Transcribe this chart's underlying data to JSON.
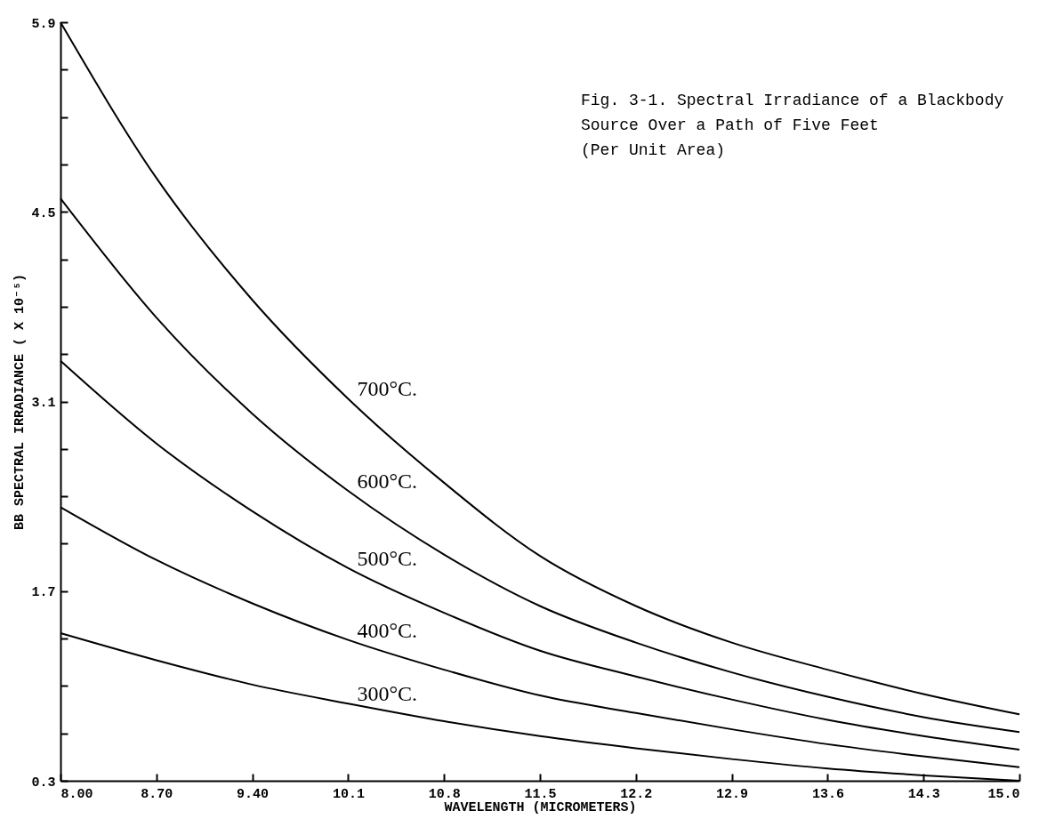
{
  "chart_data": {
    "type": "line",
    "title": "Fig. 3-1.  Spectral Irradiance of a Blackbody\nSource  Over a Path of Five Feet\n(Per Unit Area)",
    "xlabel": "WAVELENGTH (MICROMETERS)",
    "ylabel": "BB SPECTRAL IRRADIANCE   ( X 10⁻⁵)",
    "x": [
      8.0,
      8.7,
      9.4,
      10.1,
      10.8,
      11.5,
      12.2,
      12.9,
      13.6,
      14.3,
      15.0
    ],
    "series": [
      {
        "name": "700°C.",
        "color": "#000000",
        "values": [
          5.9,
          4.75,
          3.85,
          3.12,
          2.5,
          1.96,
          1.59,
          1.32,
          1.12,
          0.94,
          0.79
        ]
      },
      {
        "name": "600°C.",
        "color": "#000000",
        "values": [
          4.6,
          3.72,
          3.01,
          2.44,
          1.97,
          1.59,
          1.32,
          1.1,
          0.92,
          0.77,
          0.66
        ]
      },
      {
        "name": "500°C.",
        "color": "#000000",
        "values": [
          3.4,
          2.79,
          2.29,
          1.87,
          1.54,
          1.26,
          1.07,
          0.9,
          0.75,
          0.63,
          0.53
        ]
      },
      {
        "name": "400°C.",
        "color": "#000000",
        "values": [
          2.32,
          1.93,
          1.61,
          1.34,
          1.12,
          0.93,
          0.8,
          0.68,
          0.57,
          0.48,
          0.4
        ]
      },
      {
        "name": "300°C.",
        "color": "#000000",
        "values": [
          1.39,
          1.19,
          1.01,
          0.87,
          0.74,
          0.63,
          0.54,
          0.46,
          0.39,
          0.34,
          0.3
        ]
      }
    ],
    "xlim": [
      8.0,
      15.0
    ],
    "xticks": [
      {
        "value": 8.0,
        "label": "8.00"
      },
      {
        "value": 8.7,
        "label": "8.70"
      },
      {
        "value": 9.4,
        "label": "9.40"
      },
      10.1,
      10.8,
      11.5,
      12.2,
      12.9,
      13.6,
      14.3,
      {
        "value": 15.0,
        "label": "15.0"
      }
    ],
    "ylim": [
      0.3,
      5.9
    ],
    "yticks": [
      0.3,
      {
        "value": 0.65,
        "label": null
      },
      {
        "value": 1.0,
        "label": null
      },
      {
        "value": 1.35,
        "label": null
      },
      1.7,
      {
        "value": 2.05,
        "label": null
      },
      {
        "value": 2.4,
        "label": null
      },
      {
        "value": 2.75,
        "label": null
      },
      3.1,
      {
        "value": 3.45,
        "label": null
      },
      {
        "value": 3.8,
        "label": null
      },
      {
        "value": 4.15,
        "label": null
      },
      4.5,
      {
        "value": 4.85,
        "label": null
      },
      {
        "value": 5.2,
        "label": null
      },
      {
        "value": 5.55,
        "label": null
      },
      5.9
    ],
    "grid": false,
    "marker": "none",
    "line_style": "solid"
  }
}
